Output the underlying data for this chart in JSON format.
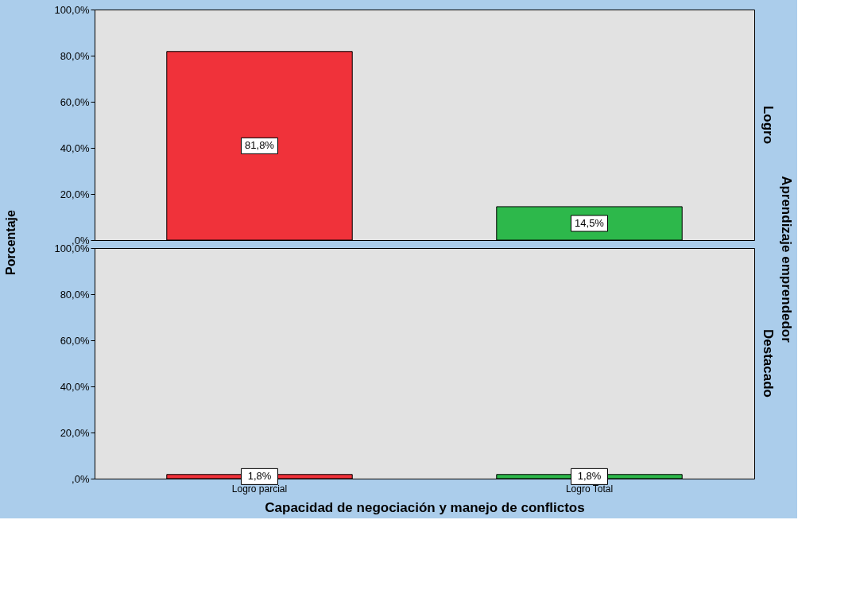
{
  "chart_data": [
    {
      "type": "bar",
      "title": "Logro",
      "ylabel": "Porcentaje",
      "annotations": [
        "Aprendizaje emprendedor"
      ],
      "categories": [
        null,
        null
      ],
      "values": [
        81.8,
        14.5
      ],
      "colors": [
        "#f0323a",
        "#2db84b"
      ],
      "value_labels": [
        "81,8%",
        "14,5%"
      ],
      "ylim": [
        0,
        100
      ],
      "yticks": [
        {
          "value": 0,
          "label": ",0%"
        },
        {
          "value": 20,
          "label": "20,0%"
        },
        {
          "value": 40,
          "label": "40,0%"
        },
        {
          "value": 60,
          "label": "60,0%"
        },
        {
          "value": 80,
          "label": "80,0%"
        },
        {
          "value": 100,
          "label": "100,0%"
        }
      ],
      "tick_labels": "y",
      "grid": false,
      "legend": false
    },
    {
      "type": "bar",
      "title": "Destacado",
      "xlabel": "Capacidad de negociación y manejo de conflictos",
      "categories": [
        "Logro parcial",
        "Logro Total"
      ],
      "values": [
        1.8,
        1.8
      ],
      "colors": [
        "#f0323a",
        "#2db84b"
      ],
      "value_labels": [
        "1,8%",
        "1,8%"
      ],
      "ylim": [
        0,
        100
      ],
      "yticks": [
        {
          "value": 0,
          "label": ",0%"
        },
        {
          "value": 20,
          "label": "20,0%"
        },
        {
          "value": 40,
          "label": "40,0%"
        },
        {
          "value": 60,
          "label": "60,0%"
        },
        {
          "value": 80,
          "label": "80,0%"
        },
        {
          "value": 100,
          "label": "100,0%"
        }
      ],
      "grid": false,
      "legend": false
    }
  ]
}
